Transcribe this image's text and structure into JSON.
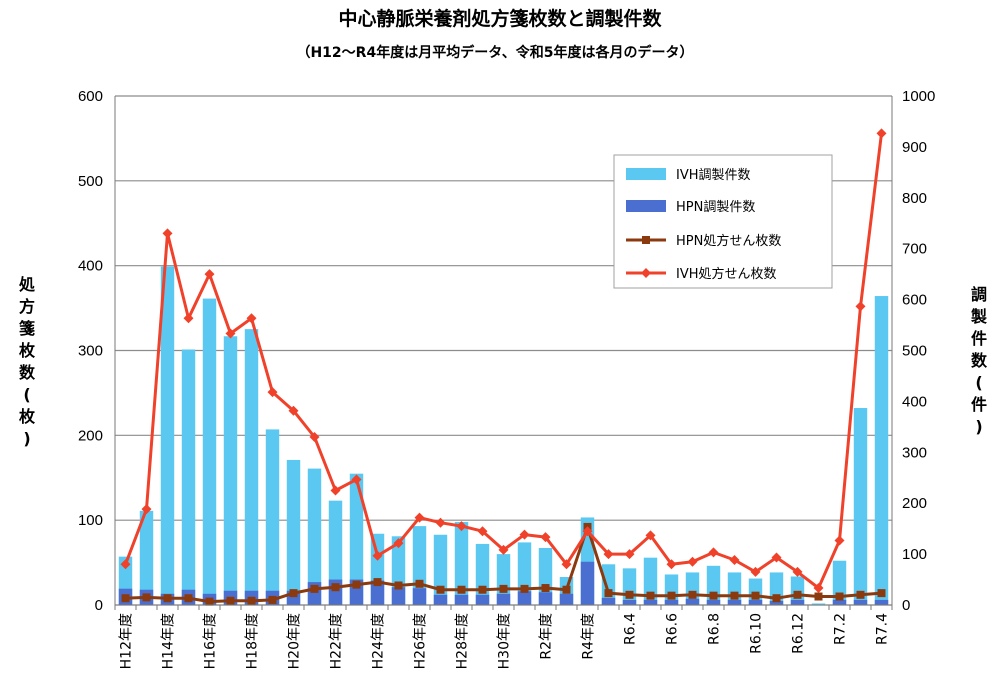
{
  "chart_data": {
    "type": "bar",
    "title": "中心静脈栄養剤処方箋枚数と調製件数",
    "subtitle": "（H12～R4年度は月平均データ、令和5年度は各月のデータ）",
    "ylabel_left": [
      "処",
      "方",
      "箋",
      "枚",
      "数",
      "(",
      "枚",
      ")"
    ],
    "ylabel_right": [
      "調",
      "製",
      "件",
      "数",
      "(",
      "件",
      ")"
    ],
    "ylim_left": [
      0,
      600
    ],
    "ylim_right": [
      0,
      1000
    ],
    "yticks_left": [
      "0",
      "100",
      "200",
      "300",
      "400",
      "500",
      "600"
    ],
    "yticks_right": [
      "0",
      "100",
      "200",
      "300",
      "400",
      "500",
      "600",
      "700",
      "800",
      "900",
      "1000"
    ],
    "grid": true,
    "legend_position": "top-right",
    "x_tick_labels": {
      "0": "H12年度",
      "2": "H14年度",
      "4": "H16年度",
      "6": "H18年度",
      "8": "H20年度",
      "10": "H22年度",
      "12": "H24年度",
      "14": "H26年度",
      "16": "H28年度",
      "18": "H30年度",
      "20": "R2年度",
      "22": "R4年度",
      "24": "R6.4",
      "26": "R6.6",
      "28": "R6.8",
      "30": "R6.10",
      "32": "R6.12",
      "34": "R7.2",
      "36": "R7.4"
    },
    "series": [
      {
        "name": "IVH調製件数",
        "kind": "bar",
        "axis": "right",
        "color": "#5bc8f2",
        "values": [
          95,
          185,
          665,
          502,
          602,
          528,
          542,
          345,
          285,
          268,
          205,
          258,
          140,
          135,
          155,
          138,
          163,
          120,
          100,
          123,
          112,
          55,
          172,
          80,
          72,
          93,
          60,
          64,
          77,
          64,
          52,
          64,
          56,
          3,
          87,
          387,
          607
        ]
      },
      {
        "name": "HPN調製件数",
        "kind": "bar",
        "axis": "right",
        "color": "#4a6fd0",
        "values": [
          32,
          30,
          22,
          30,
          22,
          28,
          28,
          28,
          28,
          45,
          50,
          50,
          48,
          35,
          33,
          20,
          20,
          20,
          22,
          27,
          25,
          22,
          85,
          14,
          10,
          10,
          10,
          12,
          10,
          10,
          10,
          8,
          10,
          0,
          10,
          10,
          10
        ]
      },
      {
        "name": "HPN処方せん枚数",
        "kind": "line",
        "axis": "left",
        "color": "#8b3a0f",
        "values": [
          8,
          9,
          8,
          8,
          4,
          5,
          5,
          6,
          14,
          19,
          21,
          24,
          27,
          23,
          25,
          18,
          18,
          18,
          19,
          19,
          20,
          18,
          92,
          14,
          12,
          11,
          11,
          12,
          11,
          11,
          11,
          8,
          12,
          10,
          10,
          12,
          14
        ]
      },
      {
        "name": "IVH処方せん枚数",
        "kind": "line",
        "axis": "left",
        "color": "#f0412a",
        "values": [
          48,
          113,
          438,
          338,
          390,
          320,
          338,
          251,
          229,
          198,
          135,
          148,
          58,
          73,
          103,
          97,
          93,
          87,
          65,
          83,
          80,
          48,
          87,
          60,
          60,
          82,
          48,
          51,
          62,
          53,
          39,
          56,
          39,
          20,
          76,
          352,
          556
        ]
      }
    ]
  }
}
